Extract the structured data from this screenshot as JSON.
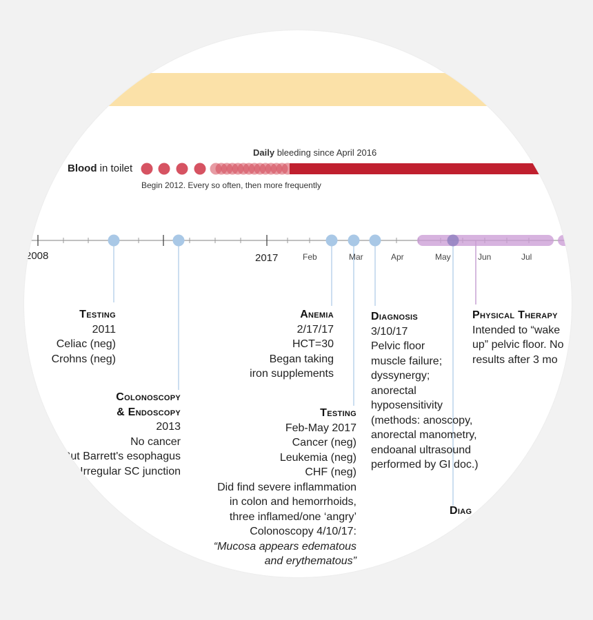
{
  "colors": {
    "band": "#fbe1a8",
    "blood": "#c0202f",
    "blood_dot": "#d44a5a",
    "axis": "#9a9a9a",
    "event_dot": "#a9c8e6",
    "event_line": "#a9c8e6",
    "therapy": "#c99ad4",
    "therapy_line": "#b98ac8"
  },
  "blood": {
    "label_bold": "Blood",
    "label_rest": " in toilet",
    "daily_bold": "Daily",
    "daily_rest": " bleeding since April 2016",
    "begin_note": "Begin 2012. Every so often, then more frequently"
  },
  "axis": {
    "year_2008": "2008",
    "year_2017": "2017",
    "months": {
      "feb": "Feb",
      "mar": "Mar",
      "apr": "Apr",
      "may": "May",
      "jun": "Jun",
      "jul": "Jul"
    }
  },
  "events": {
    "testing_2011": {
      "heading": "Testing",
      "lines": [
        "2011",
        "Celiac (neg)",
        "Crohns (neg)"
      ]
    },
    "colonoscopy": {
      "heading1": "Colonoscopy",
      "heading2": "& Endoscopy",
      "lines": [
        "2013",
        "No cancer",
        "But Barrett's esophagus",
        "Irregular SC junction"
      ]
    },
    "anemia": {
      "heading": "Anemia",
      "lines": [
        "2/17/17",
        "HCT=30",
        "Began taking",
        "iron supplements"
      ]
    },
    "testing_2017": {
      "heading": "Testing",
      "lines": [
        "Feb-May 2017",
        "Cancer (neg)",
        "Leukemia (neg)",
        "CHF (neg)",
        "Did find severe inflammation",
        "in colon and hemorrhoids,",
        "three inflamed/one ‘angry’",
        "Colonoscopy 4/10/17:"
      ],
      "quote": [
        "“Mucosa appears edematous",
        "and erythematous”"
      ]
    },
    "diagnosis": {
      "heading": "Diagnosis",
      "lines": [
        "3/10/17",
        "Pelvic floor",
        "muscle failure;",
        "dyssynergy;",
        "anorectal",
        "hyposensitivity",
        "(methods: anoscopy,",
        "anorectal manometry,",
        "endoanal ultrasound",
        "performed by GI doc.)"
      ]
    },
    "physical_therapy": {
      "heading": "Physical Therapy",
      "lines": [
        "Intended to “wake",
        "up” pelvic floor. No",
        "results after 3 mo"
      ]
    },
    "diagnosis_2": {
      "heading": "Diag"
    }
  }
}
